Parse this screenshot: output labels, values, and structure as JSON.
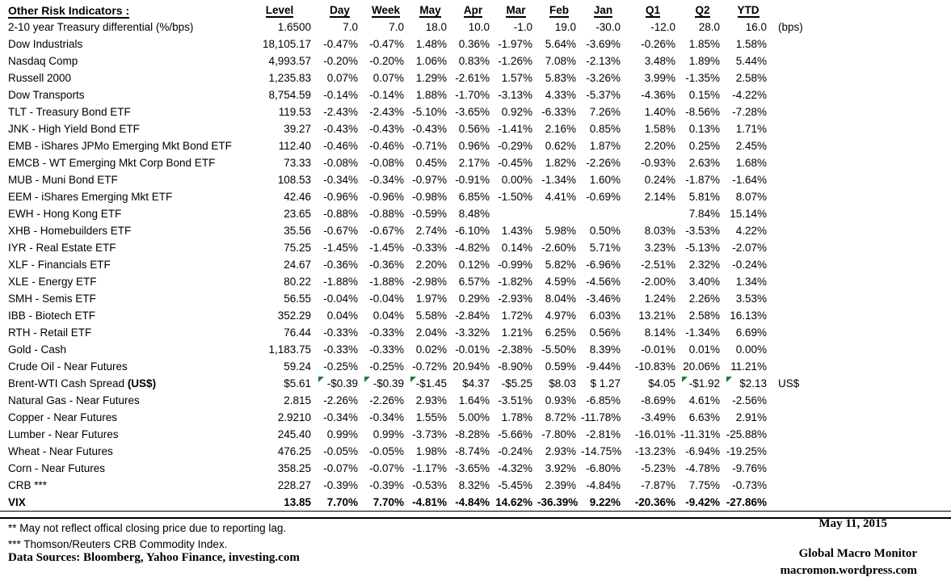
{
  "header": {
    "title": "Other Risk Indicators :",
    "columns": [
      "Level",
      "Day",
      "Week",
      "May",
      "Apr",
      "Mar",
      "Feb",
      "Jan",
      "Q1",
      "Q2",
      "YTD"
    ]
  },
  "colors": {
    "text": "#000000",
    "background": "#ffffff",
    "comment_triangle_green": "#1e7e34"
  },
  "table": {
    "rows": [
      {
        "label": "2-10 year Treasury differential (%/bps)",
        "level": "1.6500",
        "values": [
          "7.0",
          "7.0",
          "18.0",
          "10.0",
          "-1.0",
          "19.0",
          "-30.0",
          "-12.0",
          "28.0",
          "16.0"
        ],
        "note": "(bps)"
      },
      {
        "label": "Dow Industrials",
        "level": "18,105.17",
        "values": [
          "-0.47%",
          "-0.47%",
          "1.48%",
          "0.36%",
          "-1.97%",
          "5.64%",
          "-3.69%",
          "-0.26%",
          "1.85%",
          "1.58%"
        ]
      },
      {
        "label": "Nasdaq Comp",
        "level": "4,993.57",
        "values": [
          "-0.20%",
          "-0.20%",
          "1.06%",
          "0.83%",
          "-1.26%",
          "7.08%",
          "-2.13%",
          "3.48%",
          "1.89%",
          "5.44%"
        ]
      },
      {
        "label": "Russell 2000",
        "level": "1,235.83",
        "values": [
          "0.07%",
          "0.07%",
          "1.29%",
          "-2.61%",
          "1.57%",
          "5.83%",
          "-3.26%",
          "3.99%",
          "-1.35%",
          "2.58%"
        ]
      },
      {
        "label": "Dow Transports",
        "level": "8,754.59",
        "values": [
          "-0.14%",
          "-0.14%",
          "1.88%",
          "-1.70%",
          "-3.13%",
          "4.33%",
          "-5.37%",
          "-4.36%",
          "0.15%",
          "-4.22%"
        ]
      },
      {
        "label": "TLT - Treasury Bond ETF",
        "level": "119.53",
        "values": [
          "-2.43%",
          "-2.43%",
          "-5.10%",
          "-3.65%",
          "0.92%",
          "-6.33%",
          "7.26%",
          "1.40%",
          "-8.56%",
          "-7.28%"
        ]
      },
      {
        "label": "JNK - High Yield Bond ETF",
        "level": "39.27",
        "values": [
          "-0.43%",
          "-0.43%",
          "-0.43%",
          "0.56%",
          "-1.41%",
          "2.16%",
          "0.85%",
          "1.58%",
          "0.13%",
          "1.71%"
        ]
      },
      {
        "label": "EMB - iShares JPMo Emerging Mkt Bond ETF",
        "level": "112.40",
        "values": [
          "-0.46%",
          "-0.46%",
          "-0.71%",
          "0.96%",
          "-0.29%",
          "0.62%",
          "1.87%",
          "2.20%",
          "0.25%",
          "2.45%"
        ]
      },
      {
        "label": "EMCB - WT Emerging Mkt Corp Bond ETF",
        "level": "73.33",
        "values": [
          "-0.08%",
          "-0.08%",
          "0.45%",
          "2.17%",
          "-0.45%",
          "1.82%",
          "-2.26%",
          "-0.93%",
          "2.63%",
          "1.68%"
        ]
      },
      {
        "label": "MUB - Muni Bond ETF",
        "level": "108.53",
        "values": [
          "-0.34%",
          "-0.34%",
          "-0.97%",
          "-0.91%",
          "0.00%",
          "-1.34%",
          "1.60%",
          "0.24%",
          "-1.87%",
          "-1.64%"
        ]
      },
      {
        "label": "EEM - iShares Emerging Mkt ETF",
        "level": "42.46",
        "values": [
          "-0.96%",
          "-0.96%",
          "-0.98%",
          "6.85%",
          "-1.50%",
          "4.41%",
          "-0.69%",
          "2.14%",
          "5.81%",
          "8.07%"
        ]
      },
      {
        "label": "EWH - Hong Kong ETF",
        "level": "23.65",
        "values": [
          "-0.88%",
          "-0.88%",
          "-0.59%",
          "8.48%",
          "",
          "",
          "",
          "",
          "7.84%",
          "15.14%"
        ]
      },
      {
        "label": "XHB - Homebuilders ETF",
        "level": "35.56",
        "values": [
          "-0.67%",
          "-0.67%",
          "2.74%",
          "-6.10%",
          "1.43%",
          "5.98%",
          "0.50%",
          "8.03%",
          "-3.53%",
          "4.22%"
        ]
      },
      {
        "label": "IYR - Real Estate ETF",
        "level": "75.25",
        "values": [
          "-1.45%",
          "-1.45%",
          "-0.33%",
          "-4.82%",
          "0.14%",
          "-2.60%",
          "5.71%",
          "3.23%",
          "-5.13%",
          "-2.07%"
        ]
      },
      {
        "label": "XLF - Financials ETF",
        "level": "24.67",
        "values": [
          "-0.36%",
          "-0.36%",
          "2.20%",
          "0.12%",
          "-0.99%",
          "5.82%",
          "-6.96%",
          "-2.51%",
          "2.32%",
          "-0.24%"
        ]
      },
      {
        "label": "XLE - Energy ETF",
        "level": "80.22",
        "values": [
          "-1.88%",
          "-1.88%",
          "-2.98%",
          "6.57%",
          "-1.82%",
          "4.59%",
          "-4.56%",
          "-2.00%",
          "3.40%",
          "1.34%"
        ]
      },
      {
        "label": "SMH - Semis ETF",
        "level": "56.55",
        "values": [
          "-0.04%",
          "-0.04%",
          "1.97%",
          "0.29%",
          "-2.93%",
          "8.04%",
          "-3.46%",
          "1.24%",
          "2.26%",
          "3.53%"
        ]
      },
      {
        "label": "IBB - Biotech ETF",
        "level": "352.29",
        "values": [
          "0.04%",
          "0.04%",
          "5.58%",
          "-2.84%",
          "1.72%",
          "4.97%",
          "6.03%",
          "13.21%",
          "2.58%",
          "16.13%"
        ]
      },
      {
        "label": "RTH - Retail ETF",
        "level": "76.44",
        "values": [
          "-0.33%",
          "-0.33%",
          "2.04%",
          "-3.32%",
          "1.21%",
          "6.25%",
          "0.56%",
          "8.14%",
          "-1.34%",
          "6.69%"
        ]
      },
      {
        "label": "Gold - Cash",
        "level": "1,183.75",
        "values": [
          "-0.33%",
          "-0.33%",
          "0.02%",
          "-0.01%",
          "-2.38%",
          "-5.50%",
          "8.39%",
          "-0.01%",
          "0.01%",
          "0.00%"
        ]
      },
      {
        "label": "Crude Oil - Near Futures",
        "level": "59.24",
        "values": [
          "-0.25%",
          "-0.25%",
          "-0.72%",
          "20.94%",
          "-8.90%",
          "0.59%",
          "-9.44%",
          "-10.83%",
          "20.06%",
          "11.21%"
        ]
      },
      {
        "label": "Brent-WTI Cash Spread ",
        "label_bold": "(US$)",
        "level": "$5.61",
        "values": [
          "-$0.39",
          "-$0.39",
          "-$1.45",
          "$4.37",
          "-$5.25",
          "$8.03",
          "$ 1.27",
          "$4.05",
          "-$1.92",
          "$2.13"
        ],
        "note": "US$",
        "flags": [
          0,
          1,
          2,
          8,
          9
        ]
      },
      {
        "label": "Natural Gas - Near Futures",
        "level": "2.815",
        "values": [
          "-2.26%",
          "-2.26%",
          "2.93%",
          "1.64%",
          "-3.51%",
          "0.93%",
          "-6.85%",
          "-8.69%",
          "4.61%",
          "-2.56%"
        ]
      },
      {
        "label": "Copper - Near Futures",
        "level": "2.9210",
        "values": [
          "-0.34%",
          "-0.34%",
          "1.55%",
          "5.00%",
          "1.78%",
          "8.72%",
          "-11.78%",
          "-3.49%",
          "6.63%",
          "2.91%"
        ]
      },
      {
        "label": "Lumber - Near Futures",
        "level": "245.40",
        "values": [
          "0.99%",
          "0.99%",
          "-3.73%",
          "-8.28%",
          "-5.66%",
          "-7.80%",
          "-2.81%",
          "-16.01%",
          "-11.31%",
          "-25.88%"
        ]
      },
      {
        "label": "Wheat - Near Futures",
        "level": "476.25",
        "values": [
          "-0.05%",
          "-0.05%",
          "1.98%",
          "-8.74%",
          "-0.24%",
          "2.93%",
          "-14.75%",
          "-13.23%",
          "-6.94%",
          "-19.25%"
        ]
      },
      {
        "label": "Corn - Near Futures",
        "level": "358.25",
        "values": [
          "-0.07%",
          "-0.07%",
          "-1.17%",
          "-3.65%",
          "-4.32%",
          "3.92%",
          "-6.80%",
          "-5.23%",
          "-4.78%",
          "-9.76%"
        ]
      },
      {
        "label": "CRB ***",
        "level": "228.27",
        "values": [
          "-0.39%",
          "-0.39%",
          "-0.53%",
          "8.32%",
          "-5.45%",
          "2.39%",
          "-4.84%",
          "-7.87%",
          "7.75%",
          "-0.73%"
        ]
      },
      {
        "label": "VIX",
        "level": "13.85",
        "values": [
          "7.70%",
          "7.70%",
          "-4.81%",
          "-4.84%",
          "14.62%",
          "-36.39%",
          "9.22%",
          "-20.36%",
          "-9.42%",
          "-27.86%"
        ],
        "bold": true
      }
    ]
  },
  "footnotes": {
    "reporting_lag": "**  May not reflect offical closing price due to reporting lag.",
    "crb_index": "*** Thomson/Reuters CRB Commodity Index.",
    "data_sources": "Data Sources:  Bloomberg,  Yahoo Finance, investing.com"
  },
  "footer": {
    "date": "May 11, 2015",
    "brand": "Global Macro Monitor",
    "url": "macromon.wordpress.com"
  }
}
